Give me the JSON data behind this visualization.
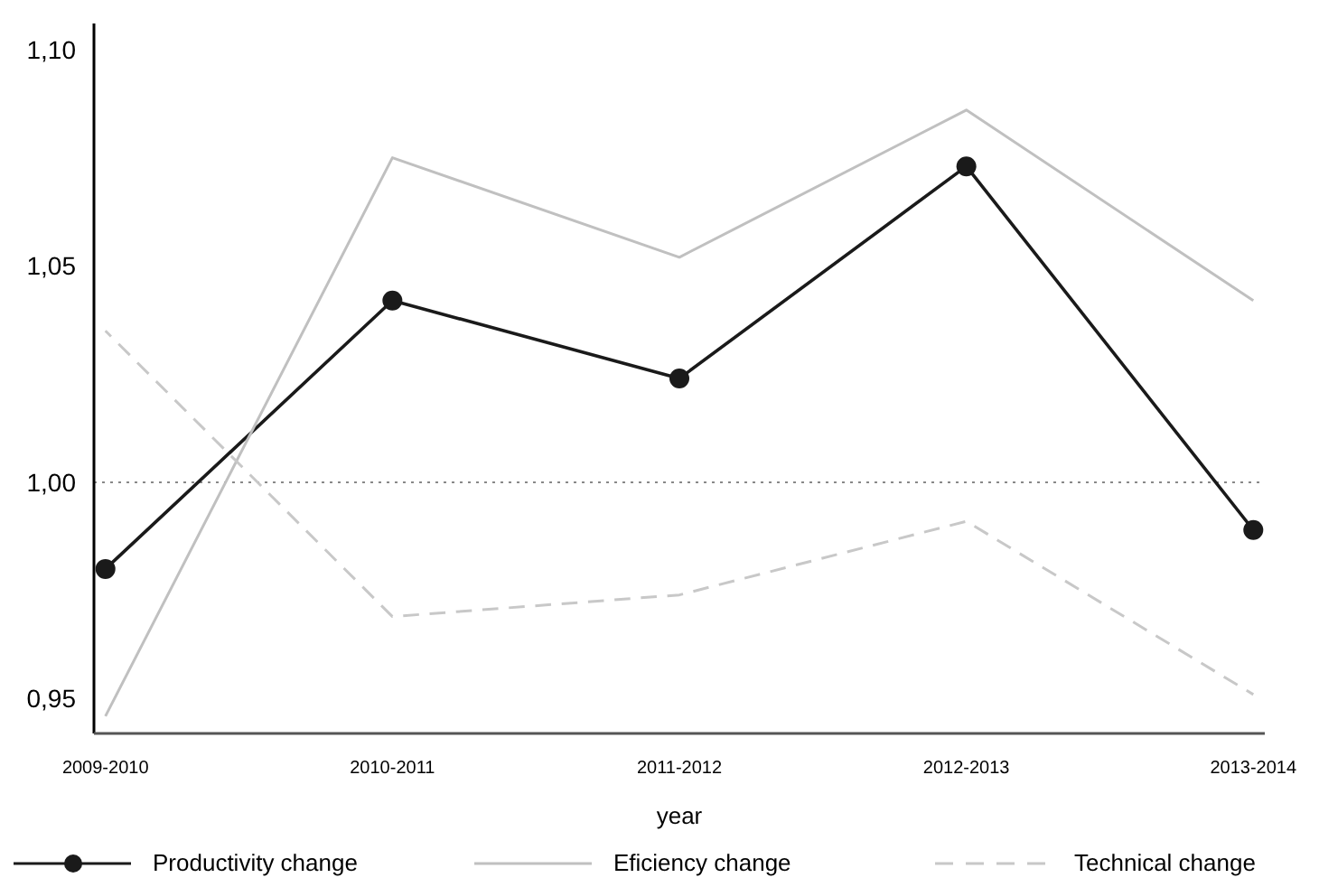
{
  "chart_data": {
    "type": "line",
    "xlabel": "year",
    "categories": [
      "2009-2010",
      "2010-2011",
      "2011-2012",
      "2012-2013",
      "2013-2014"
    ],
    "series": [
      {
        "name": "Productivity change",
        "color": "#1a1a1a",
        "marker": "circle",
        "line_style": "solid",
        "values": [
          0.98,
          1.042,
          1.024,
          1.073,
          0.989
        ]
      },
      {
        "name": "Eficiency change",
        "color": "#c0c0c0",
        "marker": "none",
        "line_style": "solid",
        "values": [
          0.946,
          1.075,
          1.052,
          1.086,
          1.042
        ]
      },
      {
        "name": "Technical change",
        "color": "#c8c8c8",
        "marker": "none",
        "line_style": "dashed",
        "values": [
          1.035,
          0.969,
          0.974,
          0.991,
          0.951
        ]
      }
    ],
    "ylim": [
      0.942,
      1.106
    ],
    "yticks": [
      {
        "value": 0.95,
        "label": "0,95"
      },
      {
        "value": 1.0,
        "label": "1,00"
      },
      {
        "value": 1.05,
        "label": "1,05"
      },
      {
        "value": 1.1,
        "label": "1,10"
      }
    ],
    "ref_lines": [
      {
        "axis": "y",
        "value": 1.0,
        "color": "#888888",
        "line_style": "dotted"
      }
    ],
    "grid": false,
    "legend": "bottom"
  }
}
